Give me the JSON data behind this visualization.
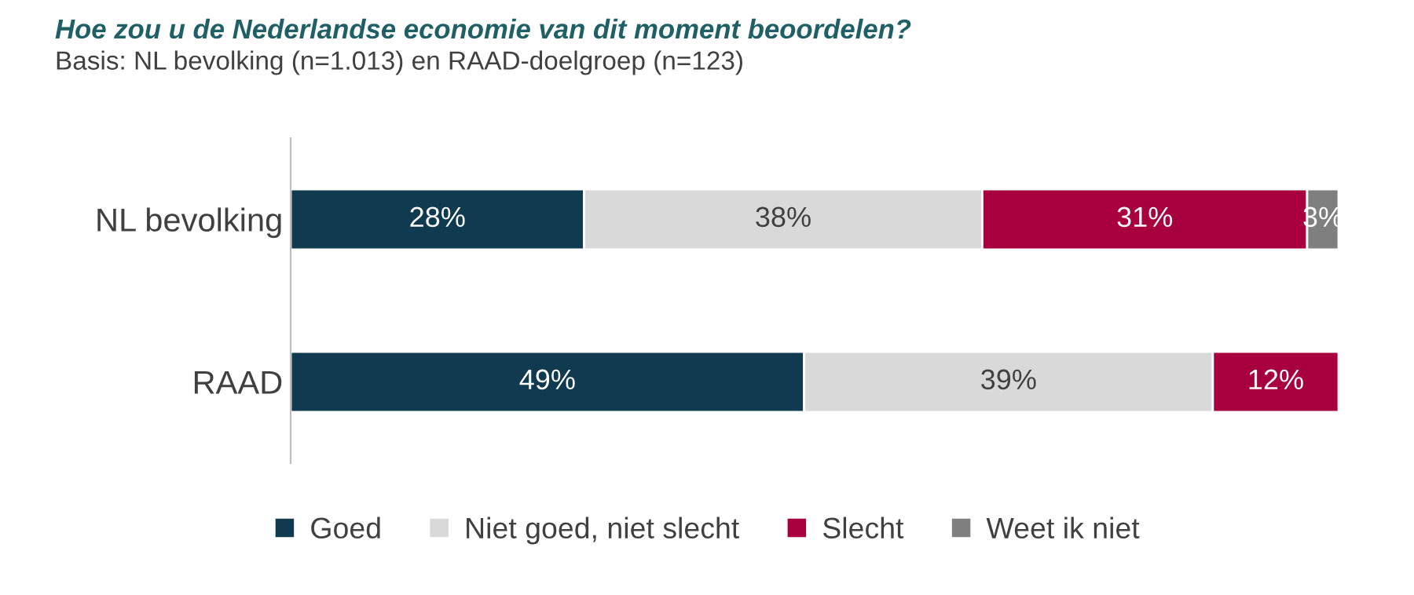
{
  "chart_data": {
    "type": "bar",
    "orientation": "horizontal",
    "stacked": true,
    "title": "Hoe zou u de Nederlandse economie van dit moment beoordelen?",
    "subtitle": "Basis: NL bevolking (n=1.013) en RAAD-doelgroep (n=123)",
    "categories": [
      "NL bevolking",
      "RAAD"
    ],
    "series": [
      {
        "name": "Goed",
        "color": "#0f3a4f",
        "values": [
          28,
          49
        ],
        "value_labels": [
          "28%",
          "49%"
        ]
      },
      {
        "name": "Niet goed, niet slecht",
        "color": "#d9d9d9",
        "values": [
          38,
          39
        ],
        "value_labels": [
          "38%",
          "39%"
        ]
      },
      {
        "name": "Slecht",
        "color": "#a8003f",
        "values": [
          31,
          12
        ],
        "value_labels": [
          "31%",
          "12%"
        ]
      },
      {
        "name": "Weet ik niet",
        "color": "#7f7f7f",
        "values": [
          3,
          null
        ],
        "value_labels": [
          "3%",
          null
        ]
      }
    ],
    "legend": "bottom",
    "tick_labels": "y"
  }
}
